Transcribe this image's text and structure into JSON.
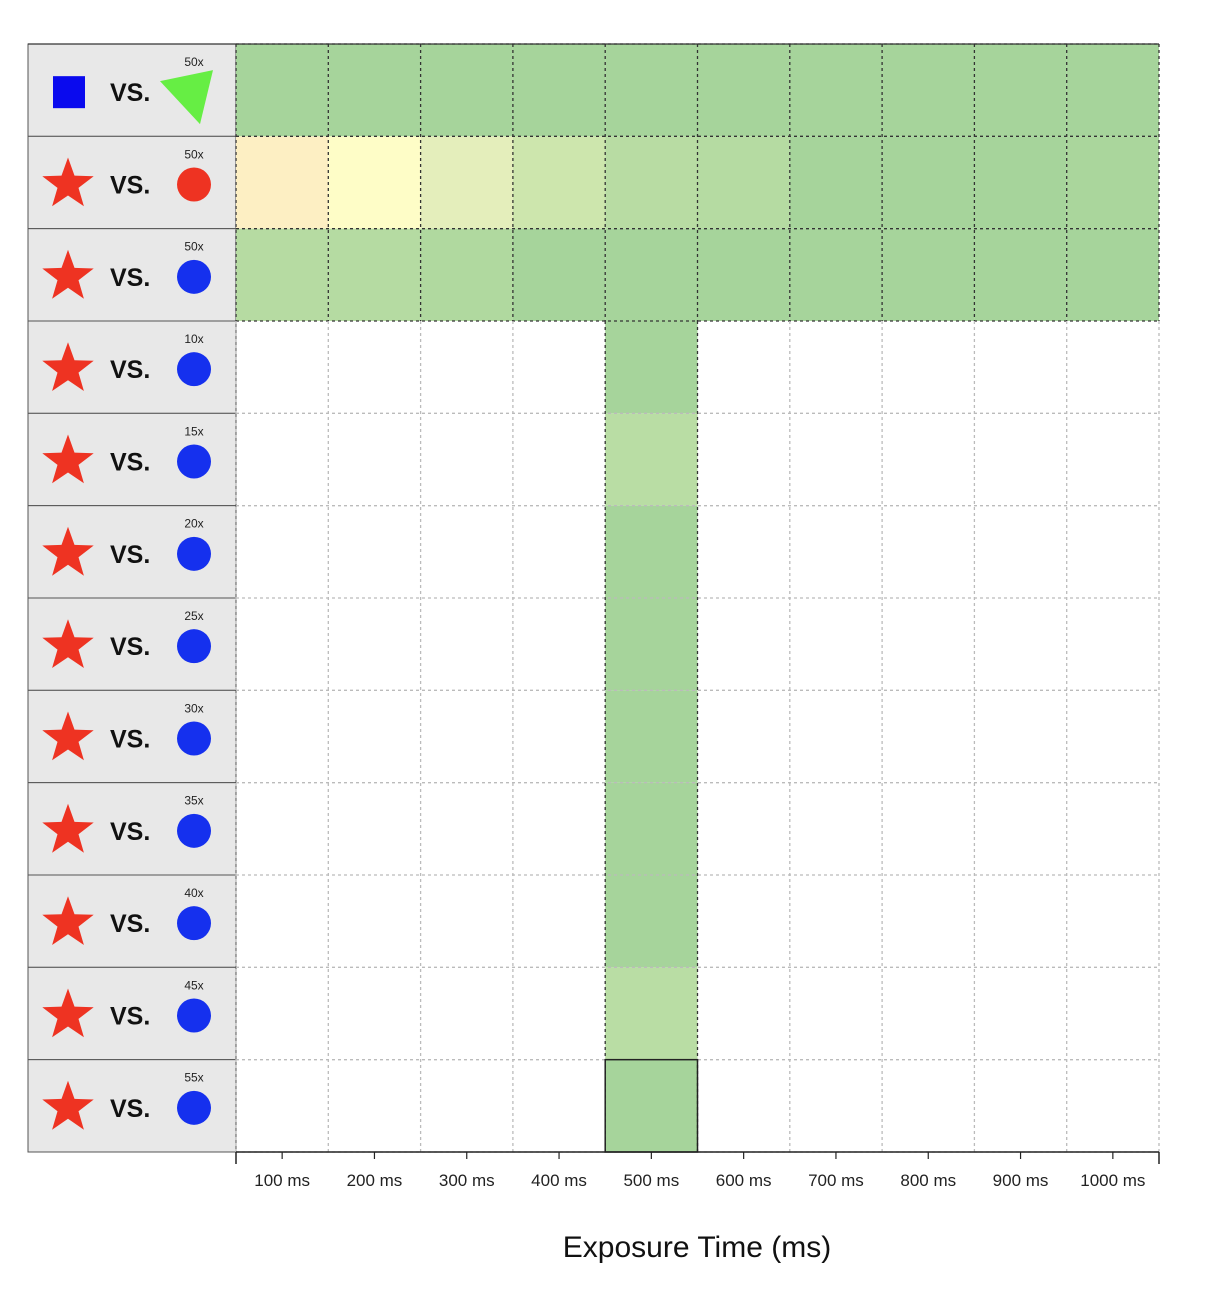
{
  "chart_data": {
    "type": "heatmap",
    "xlabel": "Exposure Time (ms)",
    "x_categories": [
      "100 ms",
      "200 ms",
      "300 ms",
      "400 ms",
      "500 ms",
      "600 ms",
      "700 ms",
      "800 ms",
      "900 ms",
      "1000 ms"
    ],
    "rows": [
      {
        "left_shape": "blue-square-icon",
        "vs": "VS.",
        "multiplier": "50x",
        "right_shape": "green-triangle-icon",
        "cells": [
          "#a6d49b",
          "#a6d49b",
          "#a6d49b",
          "#a6d49b",
          "#a6d49b",
          "#a6d49b",
          "#a6d49b",
          "#a6d49b",
          "#a6d49b",
          "#a6d49b"
        ]
      },
      {
        "left_shape": "red-star-icon",
        "vs": "VS.",
        "multiplier": "50x",
        "right_shape": "red-circle-icon",
        "cells": [
          "#fdefc3",
          "#fefdc7",
          "#e4eebb",
          "#cde6ad",
          "#b8dca3",
          "#b5dba2",
          "#a6d49b",
          "#a6d49b",
          "#a6d49b",
          "#aad69c"
        ]
      },
      {
        "left_shape": "red-star-icon",
        "vs": "VS.",
        "multiplier": "50x",
        "right_shape": "blue-circle-icon",
        "cells": [
          "#b6dba2",
          "#b5dba2",
          "#b0d99f",
          "#a6d49b",
          "#a6d49b",
          "#a6d49b",
          "#a6d49b",
          "#a6d49b",
          "#a6d49b",
          "#a6d49b"
        ]
      },
      {
        "left_shape": "red-star-icon",
        "vs": "VS.",
        "multiplier": "10x",
        "right_shape": "blue-circle-icon",
        "cells": [
          null,
          null,
          null,
          null,
          "#a6d49b",
          null,
          null,
          null,
          null,
          null
        ]
      },
      {
        "left_shape": "red-star-icon",
        "vs": "VS.",
        "multiplier": "15x",
        "right_shape": "blue-circle-icon",
        "cells": [
          null,
          null,
          null,
          null,
          "#b9dda4",
          null,
          null,
          null,
          null,
          null
        ]
      },
      {
        "left_shape": "red-star-icon",
        "vs": "VS.",
        "multiplier": "20x",
        "right_shape": "blue-circle-icon",
        "cells": [
          null,
          null,
          null,
          null,
          "#a6d49b",
          null,
          null,
          null,
          null,
          null
        ]
      },
      {
        "left_shape": "red-star-icon",
        "vs": "VS.",
        "multiplier": "25x",
        "right_shape": "blue-circle-icon",
        "cells": [
          null,
          null,
          null,
          null,
          "#a6d49b",
          null,
          null,
          null,
          null,
          null
        ]
      },
      {
        "left_shape": "red-star-icon",
        "vs": "VS.",
        "multiplier": "30x",
        "right_shape": "blue-circle-icon",
        "cells": [
          null,
          null,
          null,
          null,
          "#a6d49b",
          null,
          null,
          null,
          null,
          null
        ]
      },
      {
        "left_shape": "red-star-icon",
        "vs": "VS.",
        "multiplier": "35x",
        "right_shape": "blue-circle-icon",
        "cells": [
          null,
          null,
          null,
          null,
          "#a6d49b",
          null,
          null,
          null,
          null,
          null
        ]
      },
      {
        "left_shape": "red-star-icon",
        "vs": "VS.",
        "multiplier": "40x",
        "right_shape": "blue-circle-icon",
        "cells": [
          null,
          null,
          null,
          null,
          "#a6d49b",
          null,
          null,
          null,
          null,
          null
        ]
      },
      {
        "left_shape": "red-star-icon",
        "vs": "VS.",
        "multiplier": "45x",
        "right_shape": "blue-circle-icon",
        "cells": [
          null,
          null,
          null,
          null,
          "#b9dda4",
          null,
          null,
          null,
          null,
          null
        ]
      },
      {
        "left_shape": "red-star-icon",
        "vs": "VS.",
        "multiplier": "55x",
        "right_shape": "blue-circle-icon",
        "cells": [
          null,
          null,
          null,
          null,
          "#a6d49b",
          null,
          null,
          null,
          null,
          null
        ]
      }
    ],
    "highlighted_cell": {
      "row": 11,
      "col": 4
    },
    "grid": true
  },
  "colors": {
    "label_panel_bg": "#e8e8e8",
    "blue_shape": "#0a0aee",
    "blue_circle": "#1530ee",
    "red_shape": "#ee3322",
    "green_triangle": "#66ee44"
  }
}
